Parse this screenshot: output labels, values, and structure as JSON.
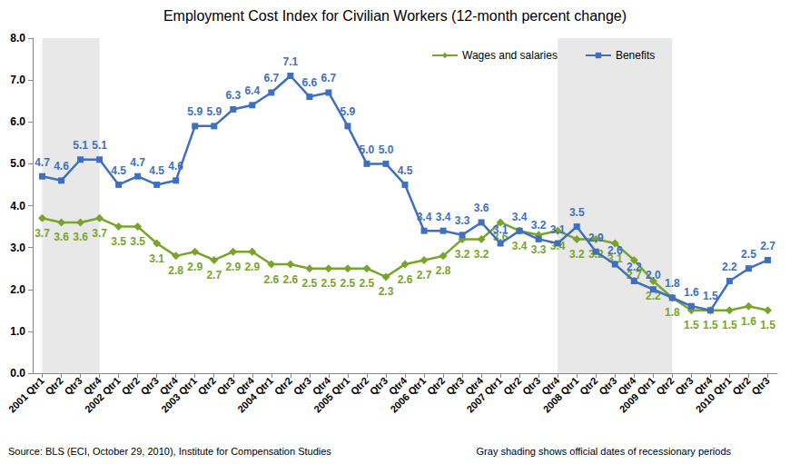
{
  "chart_data": {
    "type": "line",
    "title": "Employment Cost Index for Civilian Workers (12-month percent change)",
    "source": "Source: BLS (ECI, October 29, 2010), Institute for Compensation Studies",
    "note": "Gray shading shows official dates of recessionary periods",
    "categories": [
      "2001 Qtr1",
      "Qtr2",
      "Qtr3",
      "Qtr4",
      "2002 Qtr1",
      "Qtr2",
      "Qtr3",
      "Qtr4",
      "2003 Qtr1",
      "Qtr2",
      "Qtr3",
      "Qtr4",
      "2004 Qtr1",
      "Qtr2",
      "Qtr3",
      "Qtr4",
      "2005 Qtr1",
      "Qtr2",
      "Qtr3",
      "Qtr4",
      "2006 Qtr1",
      "Qtr2",
      "Qtr3",
      "Qtr4",
      "2007 Qtr1",
      "Qtr2",
      "Qtr3",
      "Qtr4",
      "2008 Qtr1",
      "Qtr2",
      "Qtr3",
      "Qtr4",
      "2009 Qtr1",
      "Qtr2",
      "Qtr3",
      "Qtr4",
      "2010 Qtr1",
      "Qtr2",
      "Qtr3"
    ],
    "series": [
      {
        "name": "Wages and salaries",
        "color": "#77a52b",
        "marker": "diamond",
        "line_style": "solid",
        "values": [
          3.7,
          3.6,
          3.6,
          3.7,
          3.5,
          3.5,
          3.1,
          2.8,
          2.9,
          2.7,
          2.9,
          2.9,
          2.6,
          2.6,
          2.5,
          2.5,
          2.5,
          2.5,
          2.3,
          2.6,
          2.7,
          2.8,
          3.2,
          3.2,
          3.6,
          3.4,
          3.3,
          3.4,
          3.2,
          3.2,
          3.1,
          2.7,
          2.2,
          1.8,
          1.5,
          1.5,
          1.5,
          1.6,
          1.5
        ]
      },
      {
        "name": "Benefits",
        "color": "#3f6fbf",
        "marker": "square",
        "line_style": "solid",
        "values": [
          4.7,
          4.6,
          5.1,
          5.1,
          4.5,
          4.7,
          4.5,
          4.6,
          5.9,
          5.9,
          6.3,
          6.4,
          6.7,
          7.1,
          6.6,
          6.7,
          5.9,
          5.0,
          5.0,
          4.5,
          3.4,
          3.4,
          3.3,
          3.6,
          3.1,
          3.4,
          3.2,
          3.1,
          3.5,
          2.9,
          2.6,
          2.2,
          2.0,
          1.8,
          1.6,
          1.5,
          2.2,
          2.5,
          2.7
        ],
        "value_labels": [
          "4.7",
          "4.6",
          "5.1",
          "5.1",
          "4.5",
          "4.7",
          "4.5",
          "4.6",
          "5.9",
          "5.9",
          "6.3",
          "6.4",
          "6.7",
          "7.1",
          "6.6",
          "6.7",
          "5.9",
          "5.0",
          "5.0",
          "4.5",
          "3.4",
          "3.4",
          "3.3",
          "3.6",
          "3.1",
          "3.4",
          "3.2",
          "3.1",
          "3.5",
          "2.9",
          "2.6",
          "2.2",
          "2.0",
          "1.8",
          "1.6",
          "1.5",
          "2.2",
          "2.5",
          "2.7"
        ]
      }
    ],
    "recession_periods": [
      [
        0,
        3
      ],
      [
        27,
        33
      ]
    ],
    "ylim": [
      0,
      8
    ],
    "yticks": [
      {
        "value": 0,
        "label": "0.0"
      },
      {
        "value": 1,
        "label": "1.0"
      },
      {
        "value": 2,
        "label": "2.0"
      },
      {
        "value": 3,
        "label": "3.0"
      },
      {
        "value": 4,
        "label": "4.0"
      },
      {
        "value": 5,
        "label": "5.0"
      },
      {
        "value": 6,
        "label": "6.0"
      },
      {
        "value": 7,
        "label": "7.0"
      },
      {
        "value": 8,
        "label": "8.0"
      }
    ],
    "grid": false,
    "legend": "top",
    "data_labels": true
  }
}
